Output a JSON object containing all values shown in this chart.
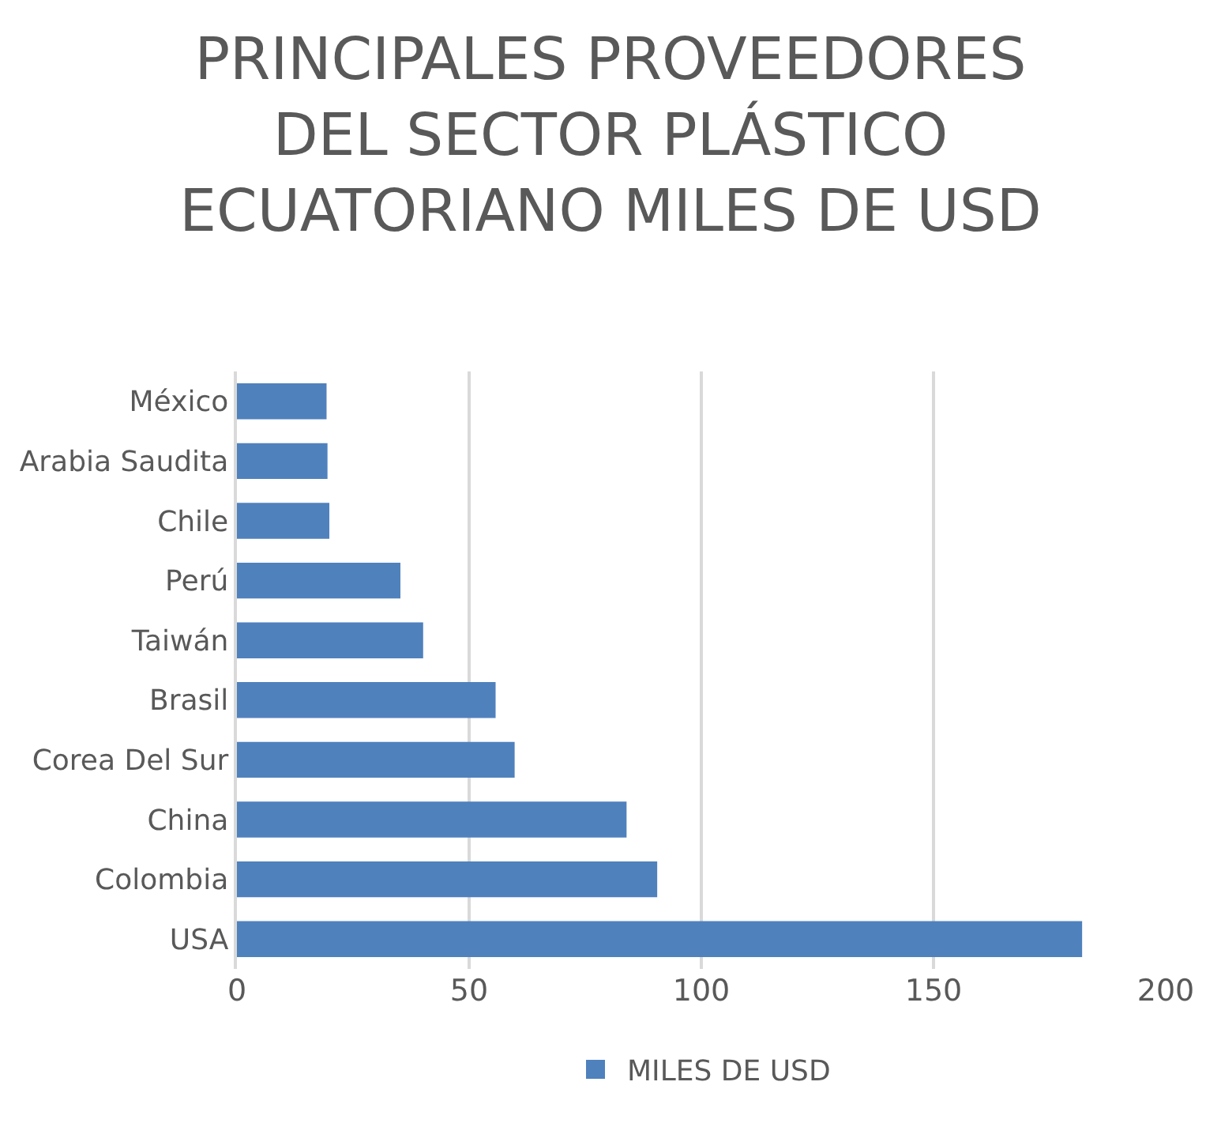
{
  "chart_data": {
    "type": "bar",
    "orientation": "horizontal",
    "title": "PRINCIPALES PROVEEDORES DEL SECTOR PLÁSTICO ECUATORIANO MILES DE USD",
    "categories": [
      "México",
      "Arabia Saudita",
      "Chile",
      "Perú",
      "Taiwán",
      "Brasil",
      "Corea Del Sur",
      "China",
      "Colombia",
      "USA"
    ],
    "series": [
      {
        "name": "MILES DE USD",
        "color": "#4f81bd",
        "values": [
          19.3,
          19.5,
          19.9,
          35.2,
          40.1,
          55.7,
          59.8,
          83.9,
          90.5,
          182
        ]
      }
    ],
    "xlim": [
      0,
      200
    ],
    "xticks": [
      0,
      50,
      100,
      150,
      200
    ],
    "grid": "x",
    "legend": "bottom"
  }
}
